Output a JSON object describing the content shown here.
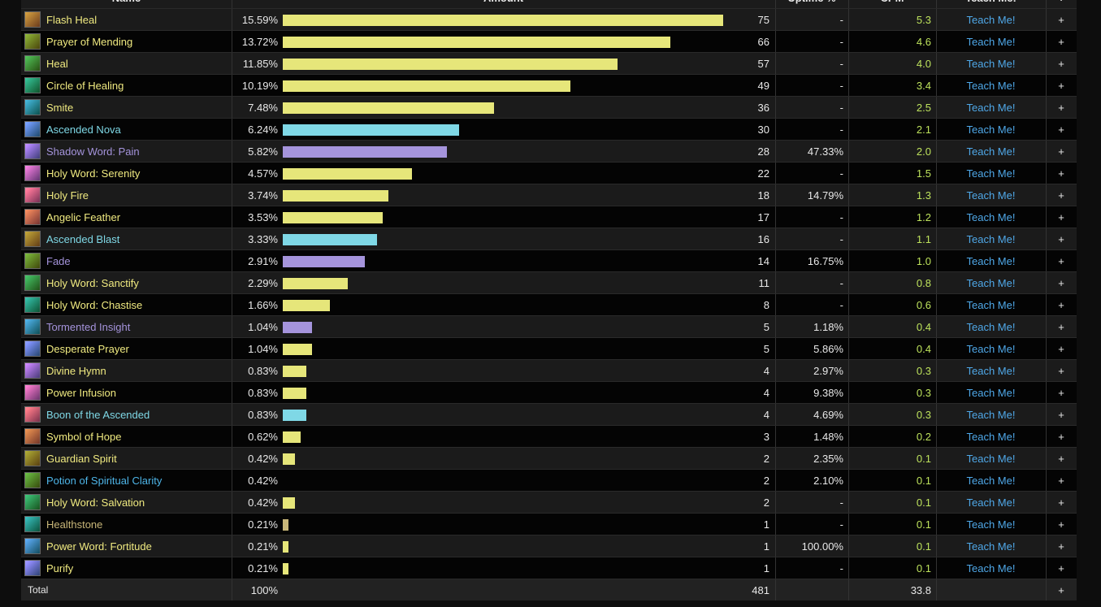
{
  "table": {
    "header": [
      "Name",
      "Amount",
      "Uptime %",
      "CPM",
      "Teach Me!",
      "+"
    ],
    "rows": [
      {
        "name": "Flash Heal",
        "color": "#f0ea80",
        "percent": {
          "value": 15.59,
          "label": "15.59%"
        },
        "count": 75,
        "uptime": "-",
        "cpm": "5.3",
        "bar_color": "#e6e67a"
      },
      {
        "name": "Prayer of Mending",
        "color": "#f0ea80",
        "percent": {
          "value": 13.72,
          "label": "13.72%"
        },
        "count": 66,
        "uptime": "-",
        "cpm": "4.6",
        "bar_color": "#e6e67a"
      },
      {
        "name": "Heal",
        "color": "#f0ea80",
        "percent": {
          "value": 11.85,
          "label": "11.85%"
        },
        "count": 57,
        "uptime": "-",
        "cpm": "4.0",
        "bar_color": "#e6e67a"
      },
      {
        "name": "Circle of Healing",
        "color": "#f0ea80",
        "percent": {
          "value": 10.19,
          "label": "10.19%"
        },
        "count": 49,
        "uptime": "-",
        "cpm": "3.4",
        "bar_color": "#e6e67a"
      },
      {
        "name": "Smite",
        "color": "#f0ea80",
        "percent": {
          "value": 7.48,
          "label": "7.48%"
        },
        "count": 36,
        "uptime": "-",
        "cpm": "2.5",
        "bar_color": "#e6e67a"
      },
      {
        "name": "Ascended Nova",
        "color": "#7fd8e6",
        "percent": {
          "value": 6.24,
          "label": "6.24%"
        },
        "count": 30,
        "uptime": "-",
        "cpm": "2.1",
        "bar_color": "#7fd8e6"
      },
      {
        "name": "Shadow Word: Pain",
        "color": "#a594dc",
        "percent": {
          "value": 5.82,
          "label": "5.82%"
        },
        "count": 28,
        "uptime": "47.33%",
        "cpm": "2.0",
        "bar_color": "#a594dc"
      },
      {
        "name": "Holy Word: Serenity",
        "color": "#f0ea80",
        "percent": {
          "value": 4.57,
          "label": "4.57%"
        },
        "count": 22,
        "uptime": "-",
        "cpm": "1.5",
        "bar_color": "#e6e67a"
      },
      {
        "name": "Holy Fire",
        "color": "#f0ea80",
        "percent": {
          "value": 3.74,
          "label": "3.74%"
        },
        "count": 18,
        "uptime": "14.79%",
        "cpm": "1.3",
        "bar_color": "#e6e67a"
      },
      {
        "name": "Angelic Feather",
        "color": "#f0ea80",
        "percent": {
          "value": 3.53,
          "label": "3.53%"
        },
        "count": 17,
        "uptime": "-",
        "cpm": "1.2",
        "bar_color": "#e6e67a"
      },
      {
        "name": "Ascended Blast",
        "color": "#7fd8e6",
        "percent": {
          "value": 3.33,
          "label": "3.33%"
        },
        "count": 16,
        "uptime": "-",
        "cpm": "1.1",
        "bar_color": "#7fd8e6"
      },
      {
        "name": "Fade",
        "color": "#a594dc",
        "percent": {
          "value": 2.91,
          "label": "2.91%"
        },
        "count": 14,
        "uptime": "16.75%",
        "cpm": "1.0",
        "bar_color": "#a594dc"
      },
      {
        "name": "Holy Word: Sanctify",
        "color": "#f0ea80",
        "percent": {
          "value": 2.29,
          "label": "2.29%"
        },
        "count": 11,
        "uptime": "-",
        "cpm": "0.8",
        "bar_color": "#e6e67a"
      },
      {
        "name": "Holy Word: Chastise",
        "color": "#f0ea80",
        "percent": {
          "value": 1.66,
          "label": "1.66%"
        },
        "count": 8,
        "uptime": "-",
        "cpm": "0.6",
        "bar_color": "#e6e67a"
      },
      {
        "name": "Tormented Insight",
        "color": "#a594dc",
        "percent": {
          "value": 1.04,
          "label": "1.04%"
        },
        "count": 5,
        "uptime": "1.18%",
        "cpm": "0.4",
        "bar_color": "#a594dc"
      },
      {
        "name": "Desperate Prayer",
        "color": "#f0ea80",
        "percent": {
          "value": 1.04,
          "label": "1.04%"
        },
        "count": 5,
        "uptime": "5.86%",
        "cpm": "0.4",
        "bar_color": "#e6e67a"
      },
      {
        "name": "Divine Hymn",
        "color": "#f0ea80",
        "percent": {
          "value": 0.83,
          "label": "0.83%"
        },
        "count": 4,
        "uptime": "2.97%",
        "cpm": "0.3",
        "bar_color": "#e6e67a"
      },
      {
        "name": "Power Infusion",
        "color": "#f0ea80",
        "percent": {
          "value": 0.83,
          "label": "0.83%"
        },
        "count": 4,
        "uptime": "9.38%",
        "cpm": "0.3",
        "bar_color": "#e6e67a"
      },
      {
        "name": "Boon of the Ascended",
        "color": "#7fd8e6",
        "percent": {
          "value": 0.83,
          "label": "0.83%"
        },
        "count": 4,
        "uptime": "4.69%",
        "cpm": "0.3",
        "bar_color": "#7fd8e6"
      },
      {
        "name": "Symbol of Hope",
        "color": "#f0ea80",
        "percent": {
          "value": 0.62,
          "label": "0.62%"
        },
        "count": 3,
        "uptime": "1.48%",
        "cpm": "0.2",
        "bar_color": "#e6e67a"
      },
      {
        "name": "Guardian Spirit",
        "color": "#f0ea80",
        "percent": {
          "value": 0.42,
          "label": "0.42%"
        },
        "count": 2,
        "uptime": "2.35%",
        "cpm": "0.1",
        "bar_color": "#e6e67a"
      },
      {
        "name": "Potion of Spiritual Clarity",
        "color": "#4eb5e8",
        "percent": {
          "value": 0.42,
          "label": "0.42%"
        },
        "count": 2,
        "uptime": "2.10%",
        "cpm": "0.1"
      },
      {
        "name": "Holy Word: Salvation",
        "color": "#f0ea80",
        "percent": {
          "value": 0.42,
          "label": "0.42%"
        },
        "count": 2,
        "uptime": "-",
        "cpm": "0.1",
        "bar_color": "#e6e67a"
      },
      {
        "name": "Healthstone",
        "color": "#c9b779",
        "percent": {
          "value": 0.21,
          "label": "0.21%"
        },
        "count": 1,
        "uptime": "-",
        "cpm": "0.1",
        "bar_color": "#c9b779"
      },
      {
        "name": "Power Word: Fortitude",
        "color": "#f0ea80",
        "percent": {
          "value": 0.21,
          "label": "0.21%"
        },
        "count": 1,
        "uptime": "100.00%",
        "cpm": "0.1",
        "bar_color": "#e6e67a"
      },
      {
        "name": "Purify",
        "color": "#f0ea80",
        "percent": {
          "value": 0.21,
          "label": "0.21%"
        },
        "count": 1,
        "uptime": "-",
        "cpm": "0.1",
        "bar_color": "#e6e67a"
      }
    ],
    "teach": "Teach Me!",
    "plus": "+",
    "total": {
      "name": "Total",
      "percent": "100%",
      "count": 481,
      "cpm": "33.8",
      "plus": "+"
    }
  }
}
